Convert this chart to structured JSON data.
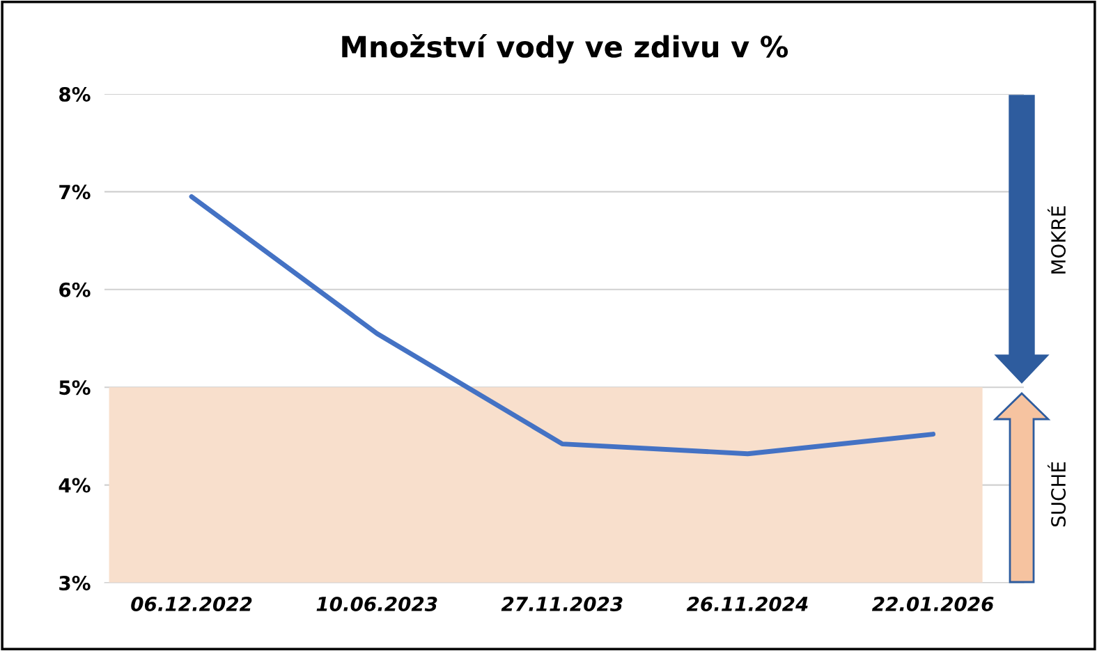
{
  "chart_data": {
    "type": "line",
    "title": "Množství vody ve zdivu v %",
    "categories": [
      "06.12.2022",
      "10.06.2023",
      "27.11.2023",
      "26.11.2024",
      "22.01.2026"
    ],
    "series": [
      {
        "color": "#4472c4",
        "values": [
          6.95,
          5.55,
          4.42,
          4.32,
          4.52
        ]
      }
    ],
    "ylim": [
      3,
      8
    ],
    "yticks": [
      {
        "value": 3,
        "label": "3%"
      },
      {
        "value": 4,
        "label": "4%"
      },
      {
        "value": 5,
        "label": "5%"
      },
      {
        "value": 6,
        "label": "6%"
      },
      {
        "value": 7,
        "label": "7%"
      },
      {
        "value": 8,
        "label": "8%"
      }
    ],
    "bands": [
      {
        "axis": "y",
        "from": 3,
        "to": 5,
        "color": "#f8dfcc"
      }
    ],
    "annotations": [
      "MOKRÉ",
      "SUCHÉ"
    ],
    "grid": "y",
    "legend": false,
    "marker": "none",
    "line_style": "solid"
  }
}
